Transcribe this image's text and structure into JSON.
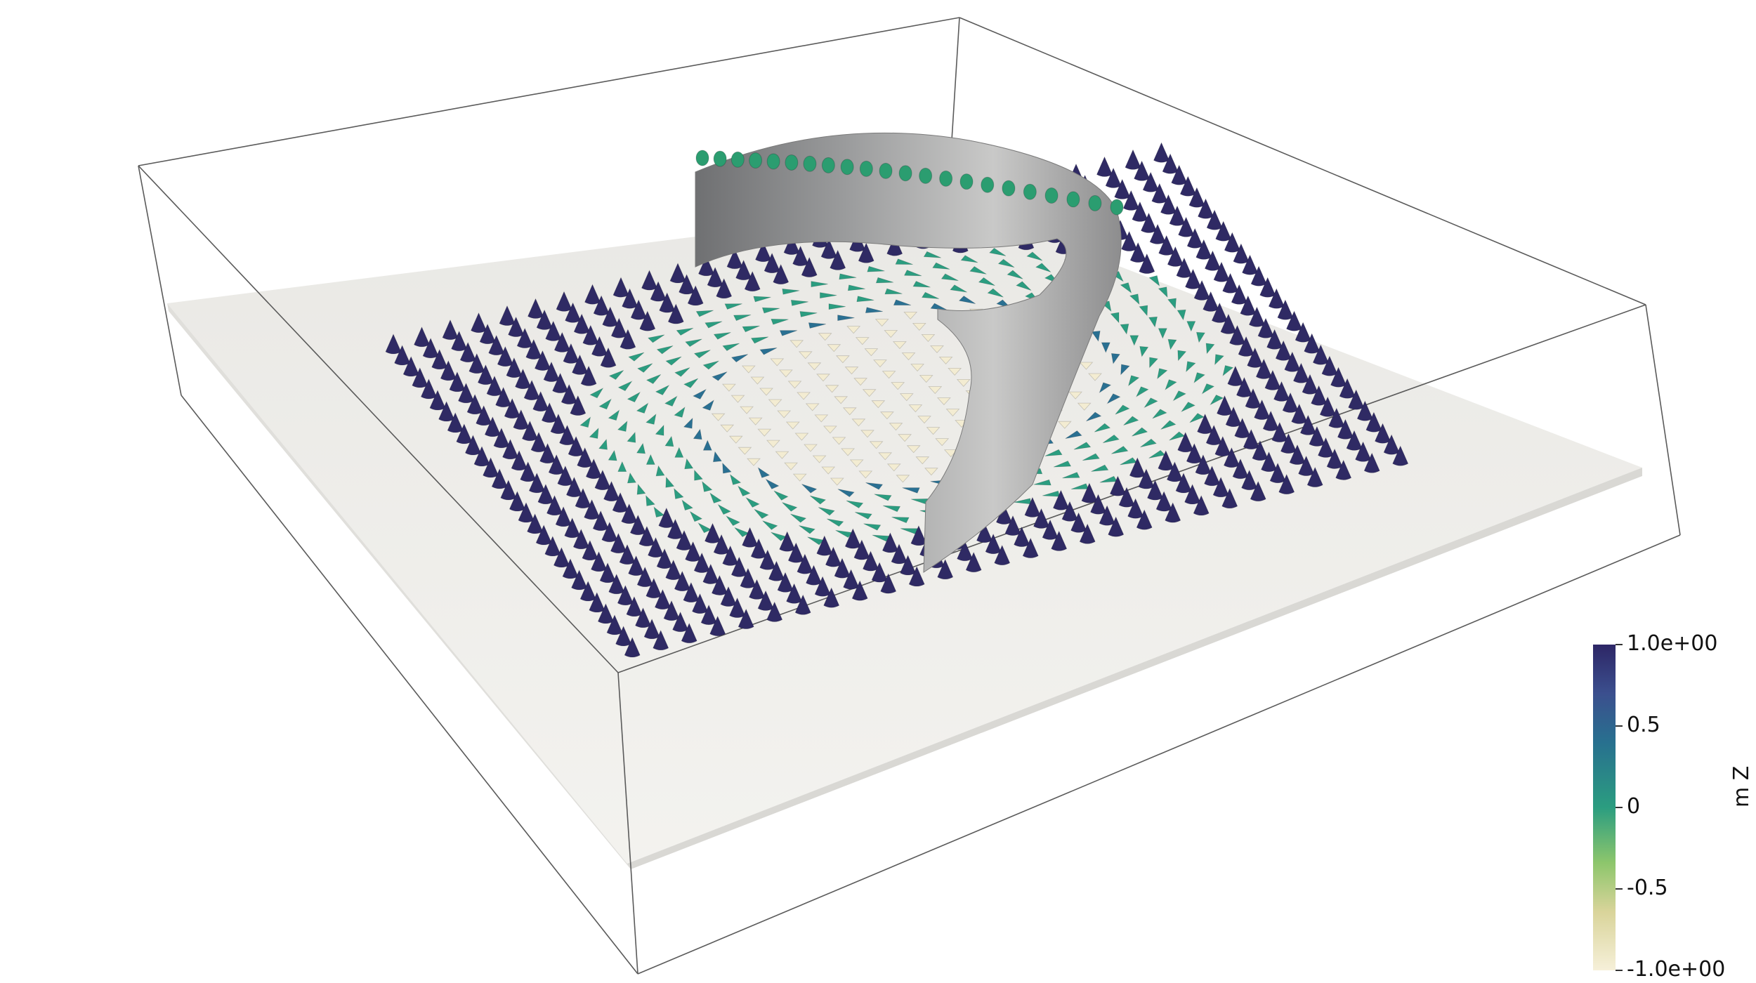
{
  "viewport": {
    "background": "#ffffff"
  },
  "colorbar": {
    "title": "m Z",
    "range": [
      -1.0,
      1.0
    ],
    "ticks": [
      {
        "value": 1.0,
        "label": "1.0e+00"
      },
      {
        "value": 0.5,
        "label": "0.5"
      },
      {
        "value": 0.0,
        "label": "0"
      },
      {
        "value": -0.5,
        "label": "-0.5"
      },
      {
        "value": -1.0,
        "label": "-1.0e+00"
      }
    ],
    "colormap": [
      "#f6f0d9",
      "#c9c884",
      "#7ec36e",
      "#2b9d80",
      "#2a7092",
      "#3b4f8e",
      "#2d2666"
    ]
  },
  "colors": {
    "box_edge": "#5a5a5a",
    "slab_fill": "#efeeea",
    "wall_fill": "#8c8c8c",
    "arrow_up": "#2f2a64"
  }
}
